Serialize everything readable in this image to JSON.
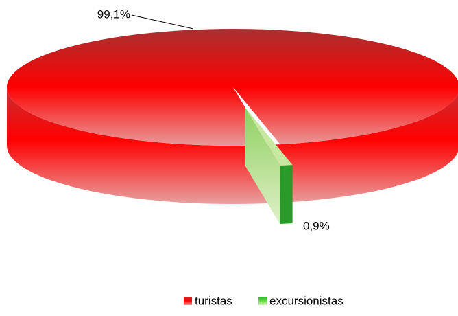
{
  "chart_data": {
    "type": "pie3d",
    "categories": [
      "turistas",
      "excursionistas"
    ],
    "values": [
      99.1,
      0.9
    ],
    "value_labels": [
      "99,1%",
      "0,9%"
    ],
    "colors": [
      "#ff0000",
      "#33cc33"
    ],
    "legend": "bottom"
  }
}
